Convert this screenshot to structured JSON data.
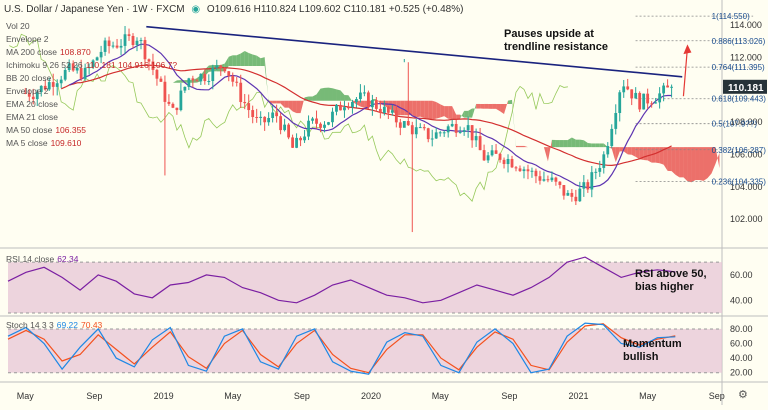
{
  "header": {
    "title": "U.S. Dollar / Japanese Yen · 1W · FXCM",
    "ohlc": "O109.616 H110.824 L109.602 C110.181 +0.525 (+0.48%)"
  },
  "indicators": [
    {
      "label": "Vol 20",
      "value": ""
    },
    {
      "label": "Envelope 2",
      "value": ""
    },
    {
      "label": "MA 200 close",
      "value": "108.870"
    },
    {
      "label": "Ichimoku 9 26 52 26",
      "value": "110.181  104.916  106.7?"
    },
    {
      "label": "BB 20 close",
      "value": ""
    },
    {
      "label": "Envelope 2",
      "value": ""
    },
    {
      "label": "EMA 20 close",
      "value": ""
    },
    {
      "label": "EMA 21 close",
      "value": ""
    },
    {
      "label": "MA 50 close",
      "value": "106.355"
    },
    {
      "label": "MA 5 close",
      "value": "109.610"
    }
  ],
  "rsi_label": {
    "label": "RSI 14 close",
    "value": "62.34"
  },
  "stoch_label": {
    "label": "Stoch 14 3 3",
    "value1": "69.22",
    "value2": "70.43"
  },
  "annotations": {
    "price": "Pauses upside at trendline resistance",
    "rsi": "RSI above 50, bias higher",
    "stoch": "Momentum bullish"
  },
  "colors": {
    "up": "#26a69a",
    "down": "#ef5350",
    "trendline": "#1a237e",
    "ma200": "#d32f2f",
    "ma50": "#5e35b1",
    "cloud_bull": "#43a047",
    "cloud_bear": "#e53935",
    "rsi": "#7b1fa2",
    "stoch_k": "#1e88e5",
    "stoch_d": "#f4511e",
    "fib": "#1a4d8f"
  },
  "chart_data": [
    {
      "type": "candlestick",
      "panel": "price",
      "x": [
        "2018-05",
        "2018-09",
        "2019-01",
        "2019-05",
        "2019-09",
        "2020-01",
        "2020-05",
        "2020-09",
        "2021-01",
        "2021-05",
        "2021-09"
      ],
      "x_tick_labels": [
        "May",
        "Sep",
        "2019",
        "May",
        "Sep",
        "2020",
        "May",
        "Sep",
        "2021",
        "May",
        "Sep"
      ],
      "ylim": [
        100.4,
        115.3
      ],
      "y_ticks": [
        102.0,
        104.0,
        106.0,
        108.0,
        110.0,
        112.0,
        114.0
      ],
      "last_price": 110.181,
      "close_path": [
        [
          "2018-05",
          109.8
        ],
        [
          "2018-06",
          110.5
        ],
        [
          "2018-07",
          111.2
        ],
        [
          "2018-08",
          111.0
        ],
        [
          "2018-09",
          112.6
        ],
        [
          "2018-10",
          112.9
        ],
        [
          "2018-11",
          113.3
        ],
        [
          "2018-12",
          111.0
        ],
        [
          "2019-01",
          108.5
        ],
        [
          "2019-02",
          110.8
        ],
        [
          "2019-03",
          110.9
        ],
        [
          "2019-04",
          111.6
        ],
        [
          "2019-05",
          109.5
        ],
        [
          "2019-06",
          107.8
        ],
        [
          "2019-07",
          108.5
        ],
        [
          "2019-08",
          106.3
        ],
        [
          "2019-09",
          107.9
        ],
        [
          "2019-10",
          108.1
        ],
        [
          "2019-11",
          109.3
        ],
        [
          "2019-12",
          109.5
        ],
        [
          "2020-01",
          108.9
        ],
        [
          "2020-02",
          108.1
        ],
        [
          "2020-03",
          107.5
        ],
        [
          "2020-04",
          107.1
        ],
        [
          "2020-05",
          107.7
        ],
        [
          "2020-06",
          107.9
        ],
        [
          "2020-07",
          105.8
        ],
        [
          "2020-08",
          105.9
        ],
        [
          "2020-09",
          105.4
        ],
        [
          "2020-10",
          104.7
        ],
        [
          "2020-11",
          104.3
        ],
        [
          "2020-12",
          103.3
        ],
        [
          "2021-01",
          104.0
        ],
        [
          "2021-02",
          106.0
        ],
        [
          "2021-03",
          110.6
        ],
        [
          "2021-04",
          109.2
        ],
        [
          "2021-05",
          109.6
        ],
        [
          "2021-06",
          110.2
        ]
      ],
      "annotations": [
        {
          "price": 112.4,
          "text": "Pauses upside at trendline resistance"
        }
      ],
      "trendline": [
        [
          "2018-12",
          113.9
        ],
        [
          "2021-07",
          110.8
        ]
      ],
      "fibonacci": [
        {
          "ratio": "1",
          "price": 114.55
        },
        {
          "ratio": "0.886",
          "price": 113.026
        },
        {
          "ratio": "0.764",
          "price": 111.395
        },
        {
          "ratio": "0.618",
          "price": 109.443
        },
        {
          "ratio": "0.5",
          "price": 107.9
        },
        {
          "ratio": "0.382",
          "price": 106.287
        },
        {
          "ratio": "0.236",
          "price": 104.335
        }
      ],
      "fib_labels": [
        "1(114.550)",
        "0.886(113.026)",
        "0.764(111.395)",
        "0.618(109.443)",
        "0.5(107.9??)",
        "0.382(106.287)",
        "0.236(104.335)"
      ],
      "series": [
        {
          "name": "MA 200 close",
          "last": 108.87
        },
        {
          "name": "MA 50 close",
          "last": 106.355
        },
        {
          "name": "MA 5 close",
          "last": 109.61
        }
      ]
    },
    {
      "type": "line",
      "panel": "rsi",
      "title": "RSI 14 close",
      "ylim": [
        30,
        78
      ],
      "y_ticks": [
        40.0,
        60.0
      ],
      "bands": [
        30,
        70
      ],
      "last": 62.34,
      "series": [
        {
          "name": "RSI 14 close",
          "values": [
            55,
            62,
            66,
            58,
            48,
            60,
            55,
            45,
            42,
            52,
            54,
            60,
            58,
            50,
            46,
            40,
            38,
            44,
            52,
            56,
            50,
            44,
            42,
            38,
            40,
            46,
            52,
            48,
            44,
            50,
            58,
            70,
            74,
            66,
            58,
            62,
            64,
            62.34
          ]
        }
      ],
      "annotation": "RSI above 50, bias higher"
    },
    {
      "type": "line",
      "panel": "stochastic",
      "title": "Stoch 14 3 3",
      "ylim": [
        10,
        95
      ],
      "y_ticks": [
        20.0,
        40.0,
        60.0,
        80.0
      ],
      "bands": [
        20,
        80
      ],
      "series": [
        {
          "name": "Stoch %K",
          "last": 69.22,
          "values": [
            70,
            82,
            60,
            25,
            55,
            80,
            40,
            28,
            65,
            82,
            30,
            22,
            70,
            80,
            35,
            25,
            70,
            80,
            35,
            22,
            18,
            62,
            75,
            70,
            30,
            20,
            62,
            80,
            60,
            20,
            25,
            70,
            88,
            86,
            60,
            55,
            68,
            69.22
          ]
        },
        {
          "name": "Stoch %D",
          "last": 70.43,
          "values": [
            66,
            78,
            66,
            36,
            45,
            72,
            52,
            32,
            55,
            76,
            42,
            26,
            60,
            78,
            45,
            28,
            60,
            78,
            45,
            26,
            20,
            52,
            72,
            72,
            40,
            24,
            55,
            76,
            66,
            30,
            24,
            62,
            84,
            87,
            68,
            58,
            66,
            70.43
          ]
        }
      ],
      "annotation": "Momentum bullish"
    }
  ]
}
